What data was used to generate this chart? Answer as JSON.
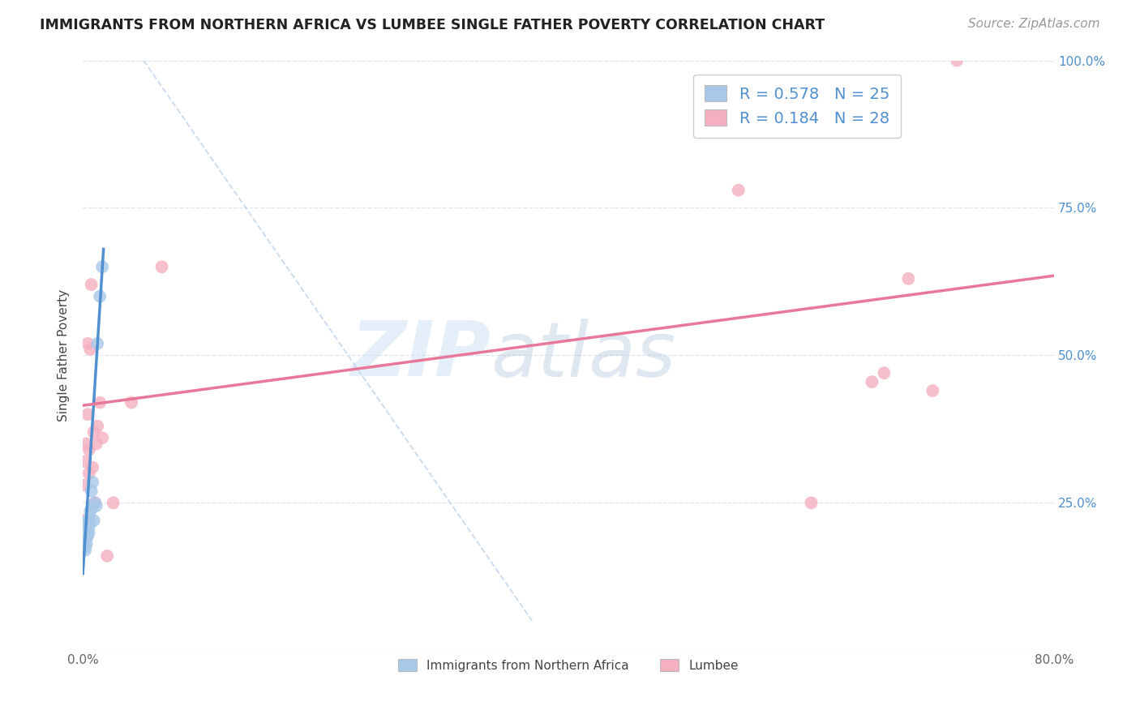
{
  "title": "IMMIGRANTS FROM NORTHERN AFRICA VS LUMBEE SINGLE FATHER POVERTY CORRELATION CHART",
  "source": "Source: ZipAtlas.com",
  "ylabel": "Single Father Poverty",
  "xlim": [
    0.0,
    0.8
  ],
  "ylim": [
    0.0,
    1.0
  ],
  "legend_r_blue": "0.578",
  "legend_n_blue": "25",
  "legend_r_pink": "0.184",
  "legend_n_pink": "28",
  "legend_label_blue": "Immigrants from Northern Africa",
  "legend_label_pink": "Lumbee",
  "blue_color": "#a8c8e8",
  "pink_color": "#f4afc0",
  "blue_line_color": "#5090d0",
  "pink_line_color": "#e8789a",
  "dashed_line_color": "#c0d4e8",
  "watermark_line1": "ZIP",
  "watermark_line2": "atlas",
  "blue_scatter_x": [
    0.001,
    0.002,
    0.002,
    0.002,
    0.003,
    0.003,
    0.003,
    0.003,
    0.004,
    0.004,
    0.004,
    0.005,
    0.005,
    0.005,
    0.006,
    0.006,
    0.007,
    0.007,
    0.008,
    0.009,
    0.01,
    0.011,
    0.012,
    0.014,
    0.016
  ],
  "blue_scatter_y": [
    0.175,
    0.2,
    0.18,
    0.17,
    0.2,
    0.19,
    0.18,
    0.2,
    0.195,
    0.22,
    0.195,
    0.22,
    0.2,
    0.21,
    0.235,
    0.22,
    0.27,
    0.24,
    0.285,
    0.22,
    0.25,
    0.245,
    0.52,
    0.6,
    0.65
  ],
  "pink_scatter_x": [
    0.001,
    0.002,
    0.002,
    0.003,
    0.004,
    0.004,
    0.005,
    0.005,
    0.006,
    0.007,
    0.008,
    0.009,
    0.01,
    0.011,
    0.012,
    0.014,
    0.016,
    0.02,
    0.025,
    0.04,
    0.065,
    0.54,
    0.6,
    0.65,
    0.66,
    0.68,
    0.7,
    0.72
  ],
  "pink_scatter_y": [
    0.22,
    0.28,
    0.32,
    0.35,
    0.4,
    0.52,
    0.34,
    0.3,
    0.51,
    0.62,
    0.31,
    0.37,
    0.25,
    0.35,
    0.38,
    0.42,
    0.36,
    0.16,
    0.25,
    0.42,
    0.65,
    0.78,
    0.25,
    0.455,
    0.47,
    0.63,
    0.44,
    1.0
  ],
  "blue_line_x": [
    0.0,
    0.017
  ],
  "blue_line_y": [
    0.13,
    0.68
  ],
  "pink_line_x": [
    0.0,
    0.8
  ],
  "pink_line_y": [
    0.415,
    0.635
  ],
  "dashed_line_x": [
    0.05,
    0.37
  ],
  "dashed_line_y": [
    1.0,
    0.05
  ],
  "background_color": "#ffffff",
  "title_fontsize": 12.5,
  "axis_label_fontsize": 11,
  "tick_fontsize": 11,
  "legend_fontsize": 14,
  "source_fontsize": 11
}
